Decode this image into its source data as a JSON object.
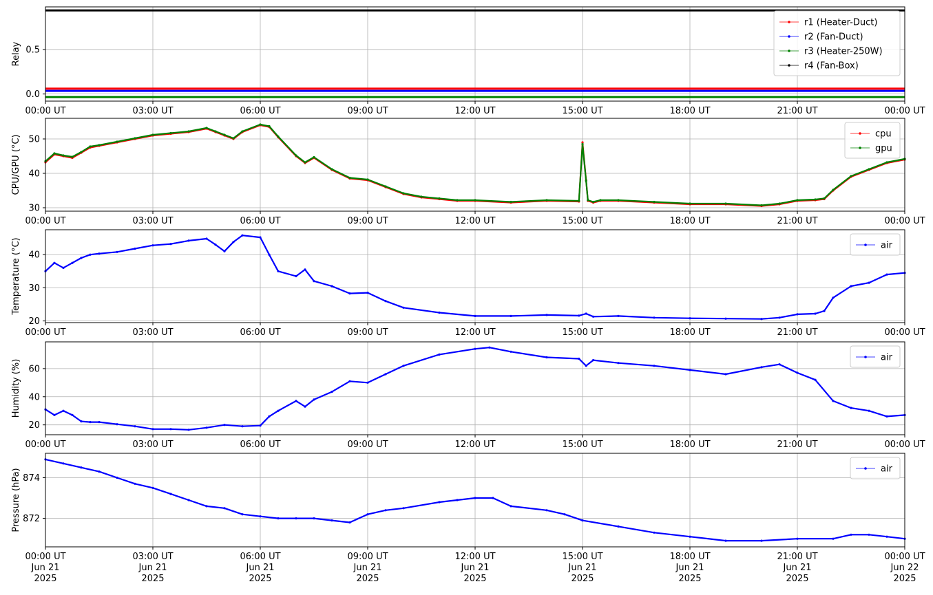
{
  "chart_data": [
    {
      "type": "line",
      "ylabel": "Relay",
      "xlim": [
        "00:00",
        "24:00"
      ],
      "ylim": [
        -0.08,
        0.98
      ],
      "yticks": [
        0.0,
        0.5
      ],
      "ytick_labels": [
        "0.0",
        "0.5"
      ],
      "xtick_labels": [
        "00:00 UT",
        "03:00 UT",
        "06:00 UT",
        "09:00 UT",
        "12:00 UT",
        "15:00 UT",
        "18:00 UT",
        "21:00 UT",
        "00:00 UT"
      ],
      "grid": true,
      "legend_position": "top-right",
      "series": [
        {
          "name": "r1 (Heater-Duct)",
          "color": "#ff0000",
          "constant": 0.06
        },
        {
          "name": "r2 (Fan-Duct)",
          "color": "#0000ff",
          "constant": 0.035
        },
        {
          "name": "r3 (Heater-250W)",
          "color": "#008000",
          "constant": -0.035
        },
        {
          "name": "r4 (Fan-Box)",
          "color": "#000000",
          "constant": 0.94
        }
      ]
    },
    {
      "type": "line",
      "ylabel": "CPU/GPU (°C)",
      "xlim": [
        "00:00",
        "24:00"
      ],
      "ylim": [
        29,
        56
      ],
      "yticks": [
        30,
        40,
        50
      ],
      "ytick_labels": [
        "30",
        "40",
        "50"
      ],
      "xtick_labels": [
        "00:00 UT",
        "03:00 UT",
        "06:00 UT",
        "09:00 UT",
        "12:00 UT",
        "15:00 UT",
        "18:00 UT",
        "21:00 UT",
        "00:00 UT"
      ],
      "grid": true,
      "legend_position": "top-right",
      "series": [
        {
          "name": "cpu",
          "color": "#ff0000",
          "x": [
            0,
            0.25,
            0.5,
            0.75,
            1,
            1.25,
            1.5,
            2,
            2.5,
            3,
            3.5,
            4,
            4.5,
            4.75,
            5,
            5.25,
            5.5,
            6,
            6.25,
            6.5,
            7,
            7.25,
            7.5,
            8,
            8.5,
            9,
            9.5,
            10,
            10.5,
            11,
            11.5,
            12,
            13,
            14,
            14.9,
            15.0,
            15.1,
            15.15,
            15.3,
            15.5,
            16,
            17,
            18,
            19,
            20,
            20.5,
            21,
            21.5,
            21.75,
            22,
            22.5,
            23,
            23.5,
            24
          ],
          "values": [
            43.2,
            45.5,
            45,
            44.5,
            46,
            47.5,
            48,
            49,
            50,
            51,
            51.5,
            52,
            53,
            52,
            51,
            50,
            52,
            54,
            53.5,
            50.5,
            45,
            43,
            44.5,
            41,
            38.5,
            38,
            36,
            34,
            33,
            32.5,
            32,
            32,
            31.5,
            32,
            31.8,
            49,
            38,
            32,
            31.5,
            32,
            32,
            31.5,
            31,
            31,
            30.5,
            31,
            32,
            32.2,
            32.5,
            35,
            39,
            41,
            43,
            44
          ]
        },
        {
          "name": "gpu",
          "color": "#008000",
          "x": [
            0,
            0.25,
            0.5,
            0.75,
            1,
            1.25,
            1.5,
            2,
            2.5,
            3,
            3.5,
            4,
            4.5,
            4.75,
            5,
            5.25,
            5.5,
            6,
            6.25,
            6.5,
            7,
            7.25,
            7.5,
            8,
            8.5,
            9,
            9.5,
            10,
            10.5,
            11,
            11.5,
            12,
            13,
            14,
            14.9,
            15.0,
            15.1,
            15.15,
            15.3,
            15.5,
            16,
            17,
            18,
            19,
            20,
            20.5,
            21,
            21.5,
            21.75,
            22,
            22.5,
            23,
            23.5,
            24
          ],
          "values": [
            43.5,
            45.8,
            45.2,
            44.8,
            46.2,
            47.8,
            48.2,
            49.2,
            50.2,
            51.2,
            51.7,
            52.2,
            53.2,
            52.2,
            51.2,
            50.2,
            52.2,
            54.2,
            53.7,
            50.7,
            45.2,
            43.2,
            44.7,
            41.2,
            38.7,
            38.2,
            36.2,
            34.2,
            33.2,
            32.7,
            32.2,
            32.2,
            31.7,
            32.2,
            32,
            48.5,
            37.8,
            32.2,
            31.7,
            32.2,
            32.2,
            31.7,
            31.2,
            31.2,
            30.7,
            31.2,
            32.2,
            32.4,
            32.7,
            35.2,
            39.2,
            41.2,
            43.2,
            44.2
          ]
        }
      ]
    },
    {
      "type": "line",
      "ylabel": "Temperature (°C)",
      "xlim": [
        "00:00",
        "24:00"
      ],
      "ylim": [
        19.5,
        47.5
      ],
      "yticks": [
        20,
        30,
        40
      ],
      "ytick_labels": [
        "20",
        "30",
        "40"
      ],
      "xtick_labels": [
        "00:00 UT",
        "03:00 UT",
        "06:00 UT",
        "09:00 UT",
        "12:00 UT",
        "15:00 UT",
        "18:00 UT",
        "21:00 UT",
        "00:00 UT"
      ],
      "grid": true,
      "legend_position": "top-right",
      "series": [
        {
          "name": "air",
          "color": "#0000ff",
          "x": [
            0,
            0.25,
            0.5,
            0.75,
            1,
            1.25,
            1.5,
            2,
            2.5,
            3,
            3.5,
            4,
            4.5,
            4.75,
            5,
            5.25,
            5.5,
            6,
            6.25,
            6.5,
            7,
            7.25,
            7.5,
            8,
            8.5,
            9,
            9.5,
            10,
            11,
            12,
            13,
            14,
            14.9,
            15.1,
            15.3,
            16,
            17,
            18,
            19,
            20,
            20.5,
            21,
            21.5,
            21.75,
            22,
            22.5,
            23,
            23.5,
            24
          ],
          "values": [
            35,
            37.5,
            36,
            37.5,
            39,
            40,
            40.3,
            40.8,
            41.8,
            42.8,
            43.2,
            44.2,
            44.8,
            43,
            41,
            43.8,
            45.8,
            45.2,
            40,
            35,
            33.5,
            35.5,
            32,
            30.5,
            28.3,
            28.5,
            26,
            24,
            22.5,
            21.5,
            21.5,
            21.8,
            21.6,
            22.2,
            21.3,
            21.5,
            21,
            20.8,
            20.7,
            20.6,
            21,
            22,
            22.2,
            23,
            27,
            30.5,
            31.5,
            34,
            34.5
          ]
        }
      ]
    },
    {
      "type": "line",
      "ylabel": "Humidity (%)",
      "xlim": [
        "00:00",
        "24:00"
      ],
      "ylim": [
        13,
        79
      ],
      "yticks": [
        20,
        40,
        60
      ],
      "ytick_labels": [
        "20",
        "40",
        "60"
      ],
      "xtick_labels": [
        "00:00 UT",
        "03:00 UT",
        "06:00 UT",
        "09:00 UT",
        "12:00 UT",
        "15:00 UT",
        "18:00 UT",
        "21:00 UT",
        "00:00 UT"
      ],
      "grid": true,
      "legend_position": "top-right",
      "series": [
        {
          "name": "air",
          "color": "#0000ff",
          "x": [
            0,
            0.25,
            0.5,
            0.75,
            1,
            1.25,
            1.5,
            2,
            2.5,
            3,
            3.5,
            4,
            4.5,
            5,
            5.5,
            6,
            6.25,
            6.5,
            7,
            7.25,
            7.5,
            8,
            8.5,
            9,
            9.5,
            10,
            11,
            12,
            12.4,
            13,
            14,
            14.9,
            15.1,
            15.3,
            16,
            17,
            18,
            19,
            20,
            20.5,
            21,
            21.5,
            22,
            22.5,
            23,
            23.5,
            24
          ],
          "values": [
            31,
            27,
            30,
            27,
            22.5,
            22,
            22,
            20.5,
            19,
            17,
            17,
            16.5,
            18,
            20,
            19,
            19.5,
            26,
            30,
            37,
            33,
            38,
            43.5,
            51,
            50,
            56,
            62,
            70,
            74,
            75,
            72,
            68,
            67,
            62,
            66,
            64,
            62,
            59,
            56,
            61,
            63,
            57,
            52,
            37,
            32,
            30,
            26,
            27
          ]
        }
      ]
    },
    {
      "type": "line",
      "ylabel": "Pressure (hPa)",
      "xlim": [
        "00:00",
        "24:00"
      ],
      "ylim": [
        870.6,
        875.2
      ],
      "yticks": [
        872,
        874
      ],
      "ytick_labels": [
        "872",
        "874"
      ],
      "xtick_labels": [
        "00:00 UT\nJun 21\n2025",
        "03:00 UT\nJun 21\n2025",
        "06:00 UT\nJun 21\n2025",
        "09:00 UT\nJun 21\n2025",
        "12:00 UT\nJun 21\n2025",
        "15:00 UT\nJun 21\n2025",
        "18:00 UT\nJun 21\n2025",
        "21:00 UT\nJun 21\n2025",
        "00:00 UT\nJun 22\n2025"
      ],
      "grid": true,
      "legend_position": "top-right",
      "series": [
        {
          "name": "air",
          "color": "#0000ff",
          "x": [
            0,
            0.5,
            1,
            1.5,
            2,
            2.5,
            3,
            3.5,
            4,
            4.5,
            5,
            5.5,
            6,
            6.5,
            7,
            7.5,
            8,
            8.5,
            9,
            9.5,
            10,
            11,
            11.5,
            12,
            12.5,
            13,
            14,
            14.5,
            15,
            16,
            17,
            18,
            19,
            20,
            21,
            22,
            22.5,
            23,
            23.5,
            24
          ],
          "values": [
            874.9,
            874.7,
            874.5,
            874.3,
            874.0,
            873.7,
            873.5,
            873.2,
            872.9,
            872.6,
            872.5,
            872.2,
            872.1,
            872.0,
            872.0,
            872.0,
            871.9,
            871.8,
            872.2,
            872.4,
            872.5,
            872.8,
            872.9,
            873.0,
            873.0,
            872.6,
            872.4,
            872.2,
            871.9,
            871.6,
            871.3,
            871.1,
            870.9,
            870.9,
            871.0,
            871.0,
            871.2,
            871.2,
            871.1,
            871.0
          ]
        }
      ]
    }
  ]
}
